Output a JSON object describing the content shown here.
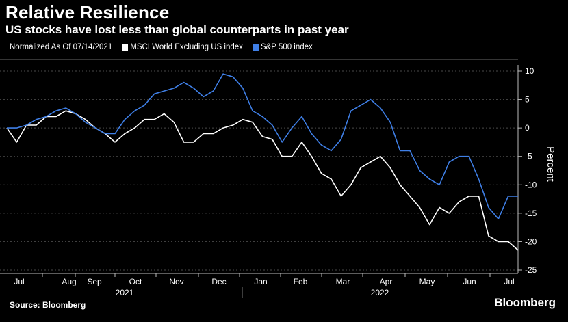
{
  "title": "Relative Resilience",
  "subtitle": "US stocks have lost less than global counterparts in past year",
  "legend": {
    "note": "Normalized As Of 07/14/2021",
    "items": [
      {
        "label": "MSCI World Excluding US index",
        "color": "#ffffff"
      },
      {
        "label": "S&P 500 index",
        "color": "#3f7fe6"
      }
    ]
  },
  "source": "Source: Bloomberg",
  "brand": "Bloomberg",
  "chart_data": {
    "type": "line",
    "ylabel": "Percent",
    "ylim": [
      -25,
      11
    ],
    "yticks": [
      10,
      5,
      0,
      -5,
      -10,
      -15,
      -20,
      -25
    ],
    "grid": "horizontal dashed",
    "month_labels": [
      "Jul",
      "Aug",
      "Sep",
      "Oct",
      "Nov",
      "Dec",
      "Jan",
      "Feb",
      "Mar",
      "Apr",
      "May",
      "Jun",
      "Jul"
    ],
    "year_labels": [
      "2021",
      "2022"
    ],
    "x": [
      "2021-07-14",
      "2021-07-21",
      "2021-07-28",
      "2021-08-04",
      "2021-08-11",
      "2021-08-18",
      "2021-08-25",
      "2021-09-01",
      "2021-09-08",
      "2021-09-15",
      "2021-09-22",
      "2021-09-29",
      "2021-10-06",
      "2021-10-13",
      "2021-10-20",
      "2021-10-27",
      "2021-11-03",
      "2021-11-10",
      "2021-11-17",
      "2021-11-24",
      "2021-12-01",
      "2021-12-08",
      "2021-12-15",
      "2021-12-22",
      "2021-12-29",
      "2022-01-05",
      "2022-01-12",
      "2022-01-19",
      "2022-01-26",
      "2022-02-02",
      "2022-02-09",
      "2022-02-16",
      "2022-02-23",
      "2022-03-02",
      "2022-03-09",
      "2022-03-16",
      "2022-03-23",
      "2022-03-30",
      "2022-04-06",
      "2022-04-13",
      "2022-04-20",
      "2022-04-27",
      "2022-05-04",
      "2022-05-11",
      "2022-05-18",
      "2022-05-25",
      "2022-06-01",
      "2022-06-08",
      "2022-06-15",
      "2022-06-22",
      "2022-06-29",
      "2022-07-06",
      "2022-07-13"
    ],
    "series": [
      {
        "name": "MSCI World Excluding US index",
        "color": "#ffffff",
        "values": [
          0,
          -2.5,
          0.5,
          0.5,
          2,
          2,
          3,
          2.5,
          1.5,
          0,
          -1,
          -2.5,
          -1,
          0,
          1.5,
          1.5,
          2.5,
          1,
          -2.5,
          -2.5,
          -1,
          -1,
          0,
          0.5,
          1.5,
          1,
          -1.5,
          -2,
          -5,
          -5,
          -2.5,
          -5,
          -8,
          -9,
          -12,
          -10,
          -7,
          -6,
          -5,
          -7,
          -10,
          -12,
          -14,
          -17,
          -14,
          -15,
          -13,
          -12,
          -12,
          -19,
          -20,
          -20,
          -21.5
        ]
      },
      {
        "name": "S&P 500 index",
        "color": "#3f7fe6",
        "values": [
          0,
          0,
          0.5,
          1.5,
          2,
          3,
          3.5,
          2.5,
          1,
          0,
          -1,
          -1,
          1.5,
          3,
          4,
          6,
          6.5,
          7,
          8,
          7,
          5.5,
          6.5,
          9.5,
          9,
          7,
          3,
          2,
          0.5,
          -2.5,
          0,
          2,
          -1,
          -3,
          -4,
          -2,
          3,
          4,
          5,
          3.5,
          1,
          -4,
          -4,
          -7.5,
          -9,
          -10,
          -6,
          -5,
          -5,
          -9,
          -14,
          -16,
          -12,
          -12
        ]
      }
    ]
  }
}
